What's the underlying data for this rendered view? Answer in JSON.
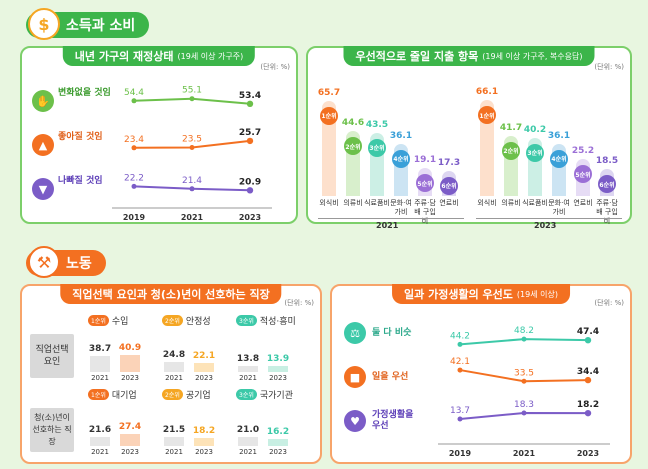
{
  "sections": {
    "income": "소득과 소비",
    "labor": "노동"
  },
  "panel1": {
    "title": "내년 가구의 재정상태",
    "subtitle": "(19세 이상 가구주)",
    "unit": "(단위: %)",
    "rows": [
      {
        "label": "변화없을 것임",
        "color": "#6cc04a"
      },
      {
        "label": "좋아질 것임",
        "color": "#f37021"
      },
      {
        "label": "나빠질 것임",
        "color": "#7b5cc7"
      }
    ],
    "years": [
      "2019",
      "2021",
      "2023"
    ]
  },
  "panel2": {
    "title": "우선적으로 줄일 지출 항목",
    "subtitle": "(19세 이상 가구주, 복수응답)",
    "unit": "(단위: %)",
    "groups": [
      {
        "year": "2021",
        "ranks": [
          "1순위",
          "2순위",
          "3순위",
          "4순위",
          "5순위",
          "6순위"
        ],
        "cats": [
          "외식비",
          "의류비",
          "식료품비",
          "문화·여가비",
          "주류·담배 구입비",
          "연료비"
        ]
      },
      {
        "year": "2023",
        "ranks": [
          "1순위",
          "2순위",
          "3순위",
          "4순위",
          "5순위",
          "6순위"
        ],
        "cats": [
          "외식비",
          "의류비",
          "식료품비",
          "문화·여가비",
          "연료비",
          "주류·담배 구입비"
        ]
      }
    ]
  },
  "panel3": {
    "title": "직업선택 요인과 청(소)년이 선호하는 직장",
    "unit": "(단위: %)",
    "row1": {
      "label": "직업선택 요인",
      "cats": [
        {
          "rank": "1순위",
          "name": "수입"
        },
        {
          "rank": "2순위",
          "name": "안정성"
        },
        {
          "rank": "3순위",
          "name": "적성·흥미"
        }
      ]
    },
    "row2": {
      "label": "청(소)년이 선호하는 직장",
      "cats": [
        {
          "rank": "1순위",
          "name": "대기업"
        },
        {
          "rank": "2순위",
          "name": "공기업"
        },
        {
          "rank": "3순위",
          "name": "국가기관"
        }
      ]
    },
    "years": [
      "2021",
      "2023"
    ]
  },
  "panel4": {
    "title": "일과 가정생활의 우선도",
    "subtitle": "(19세 이상)",
    "unit": "(단위: %)",
    "rows": [
      {
        "label": "둘 다 비슷",
        "color": "#3cc9a8"
      },
      {
        "label": "일을 우선",
        "color": "#f37021"
      },
      {
        "label": "가정생활을 우선",
        "color": "#7b5cc7"
      }
    ],
    "years": [
      "2019",
      "2021",
      "2023"
    ]
  },
  "chart_data": [
    {
      "type": "line",
      "title": "내년 가구의 재정상태",
      "categories": [
        "2019",
        "2021",
        "2023"
      ],
      "series": [
        {
          "name": "변화없을 것임",
          "values": [
            54.4,
            55.1,
            53.4
          ]
        },
        {
          "name": "좋아질 것임",
          "values": [
            23.4,
            23.5,
            25.7
          ]
        },
        {
          "name": "나빠질 것임",
          "values": [
            22.2,
            21.4,
            20.9
          ]
        }
      ]
    },
    {
      "type": "bar",
      "title": "우선적으로 줄일 지출 항목 2021",
      "categories": [
        "외식비",
        "의류비",
        "식료품비",
        "문화·여가비",
        "주류·담배 구입비",
        "연료비"
      ],
      "values": [
        65.7,
        44.6,
        43.5,
        36.1,
        19.1,
        17.3
      ]
    },
    {
      "type": "bar",
      "title": "우선적으로 줄일 지출 항목 2023",
      "categories": [
        "외식비",
        "의류비",
        "식료품비",
        "문화·여가비",
        "연료비",
        "주류·담배 구입비"
      ],
      "values": [
        66.1,
        41.7,
        40.2,
        36.1,
        25.2,
        18.5
      ]
    },
    {
      "type": "bar",
      "title": "직업선택 요인",
      "categories": [
        "수입",
        "안정성",
        "적성·흥미"
      ],
      "series": [
        {
          "name": "2021",
          "values": [
            38.7,
            24.8,
            13.8
          ]
        },
        {
          "name": "2023",
          "values": [
            40.9,
            22.1,
            13.9
          ]
        }
      ]
    },
    {
      "type": "bar",
      "title": "청(소)년이 선호하는 직장",
      "categories": [
        "대기업",
        "공기업",
        "국가기관"
      ],
      "series": [
        {
          "name": "2021",
          "values": [
            21.6,
            21.5,
            21.0
          ]
        },
        {
          "name": "2023",
          "values": [
            27.4,
            18.2,
            16.2
          ]
        }
      ]
    },
    {
      "type": "line",
      "title": "일과 가정생활의 우선도",
      "categories": [
        "2019",
        "2021",
        "2023"
      ],
      "series": [
        {
          "name": "둘 다 비슷",
          "values": [
            44.2,
            48.2,
            47.4
          ]
        },
        {
          "name": "일을 우선",
          "values": [
            42.1,
            33.5,
            34.4
          ]
        },
        {
          "name": "가정생활을 우선",
          "values": [
            13.7,
            18.3,
            18.2
          ]
        }
      ]
    }
  ]
}
